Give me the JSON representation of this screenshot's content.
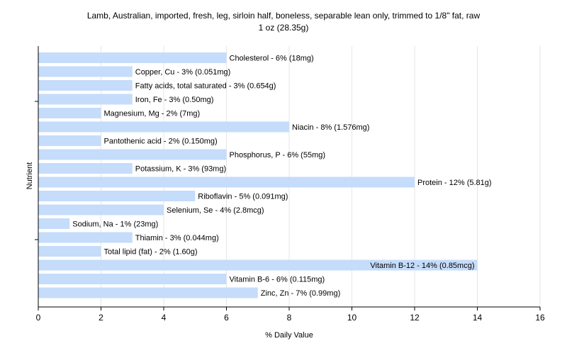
{
  "chart_data": {
    "type": "bar",
    "orientation": "horizontal",
    "title": "Lamb, Australian, imported, fresh, leg, sirloin half, boneless, separable lean only, trimmed to 1/8\" fat, raw",
    "subtitle": "1 oz (28.35g)",
    "xlabel": "% Daily Value",
    "ylabel": "Nutrient",
    "xlim": [
      0,
      16
    ],
    "xticks": [
      0,
      2,
      4,
      6,
      8,
      10,
      12,
      14,
      16
    ],
    "grid": true,
    "colors": {
      "bar": "#c5dcfb",
      "grid": "#e6e6e6",
      "axis": "#000000"
    },
    "categories": [
      "Cholesterol",
      "Copper, Cu",
      "Fatty acids, total saturated",
      "Iron, Fe",
      "Magnesium, Mg",
      "Niacin",
      "Pantothenic acid",
      "Phosphorus, P",
      "Potassium, K",
      "Protein",
      "Riboflavin",
      "Selenium, Se",
      "Sodium, Na",
      "Thiamin",
      "Total lipid (fat)",
      "Vitamin B-12",
      "Vitamin B-6",
      "Zinc, Zn"
    ],
    "values": [
      6,
      3,
      3,
      3,
      2,
      8,
      2,
      6,
      3,
      12,
      5,
      4,
      1,
      3,
      2,
      14,
      6,
      7
    ],
    "labels": [
      "Cholesterol - 6% (18mg)",
      "Copper, Cu - 3% (0.051mg)",
      "Fatty acids, total saturated - 3% (0.654g)",
      "Iron, Fe - 3% (0.50mg)",
      "Magnesium, Mg - 2% (7mg)",
      "Niacin - 8% (1.576mg)",
      "Pantothenic acid - 2% (0.150mg)",
      "Phosphorus, P - 6% (55mg)",
      "Potassium, K - 3% (93mg)",
      "Protein - 12% (5.81g)",
      "Riboflavin - 5% (0.091mg)",
      "Selenium, Se - 4% (2.8mcg)",
      "Sodium, Na - 1% (23mg)",
      "Thiamin - 3% (0.044mg)",
      "Total lipid (fat) - 2% (1.60g)",
      "Vitamin B-12 - 14% (0.85mcg)",
      "Vitamin B-6 - 6% (0.115mg)",
      "Zinc, Zn - 7% (0.99mg)"
    ]
  }
}
